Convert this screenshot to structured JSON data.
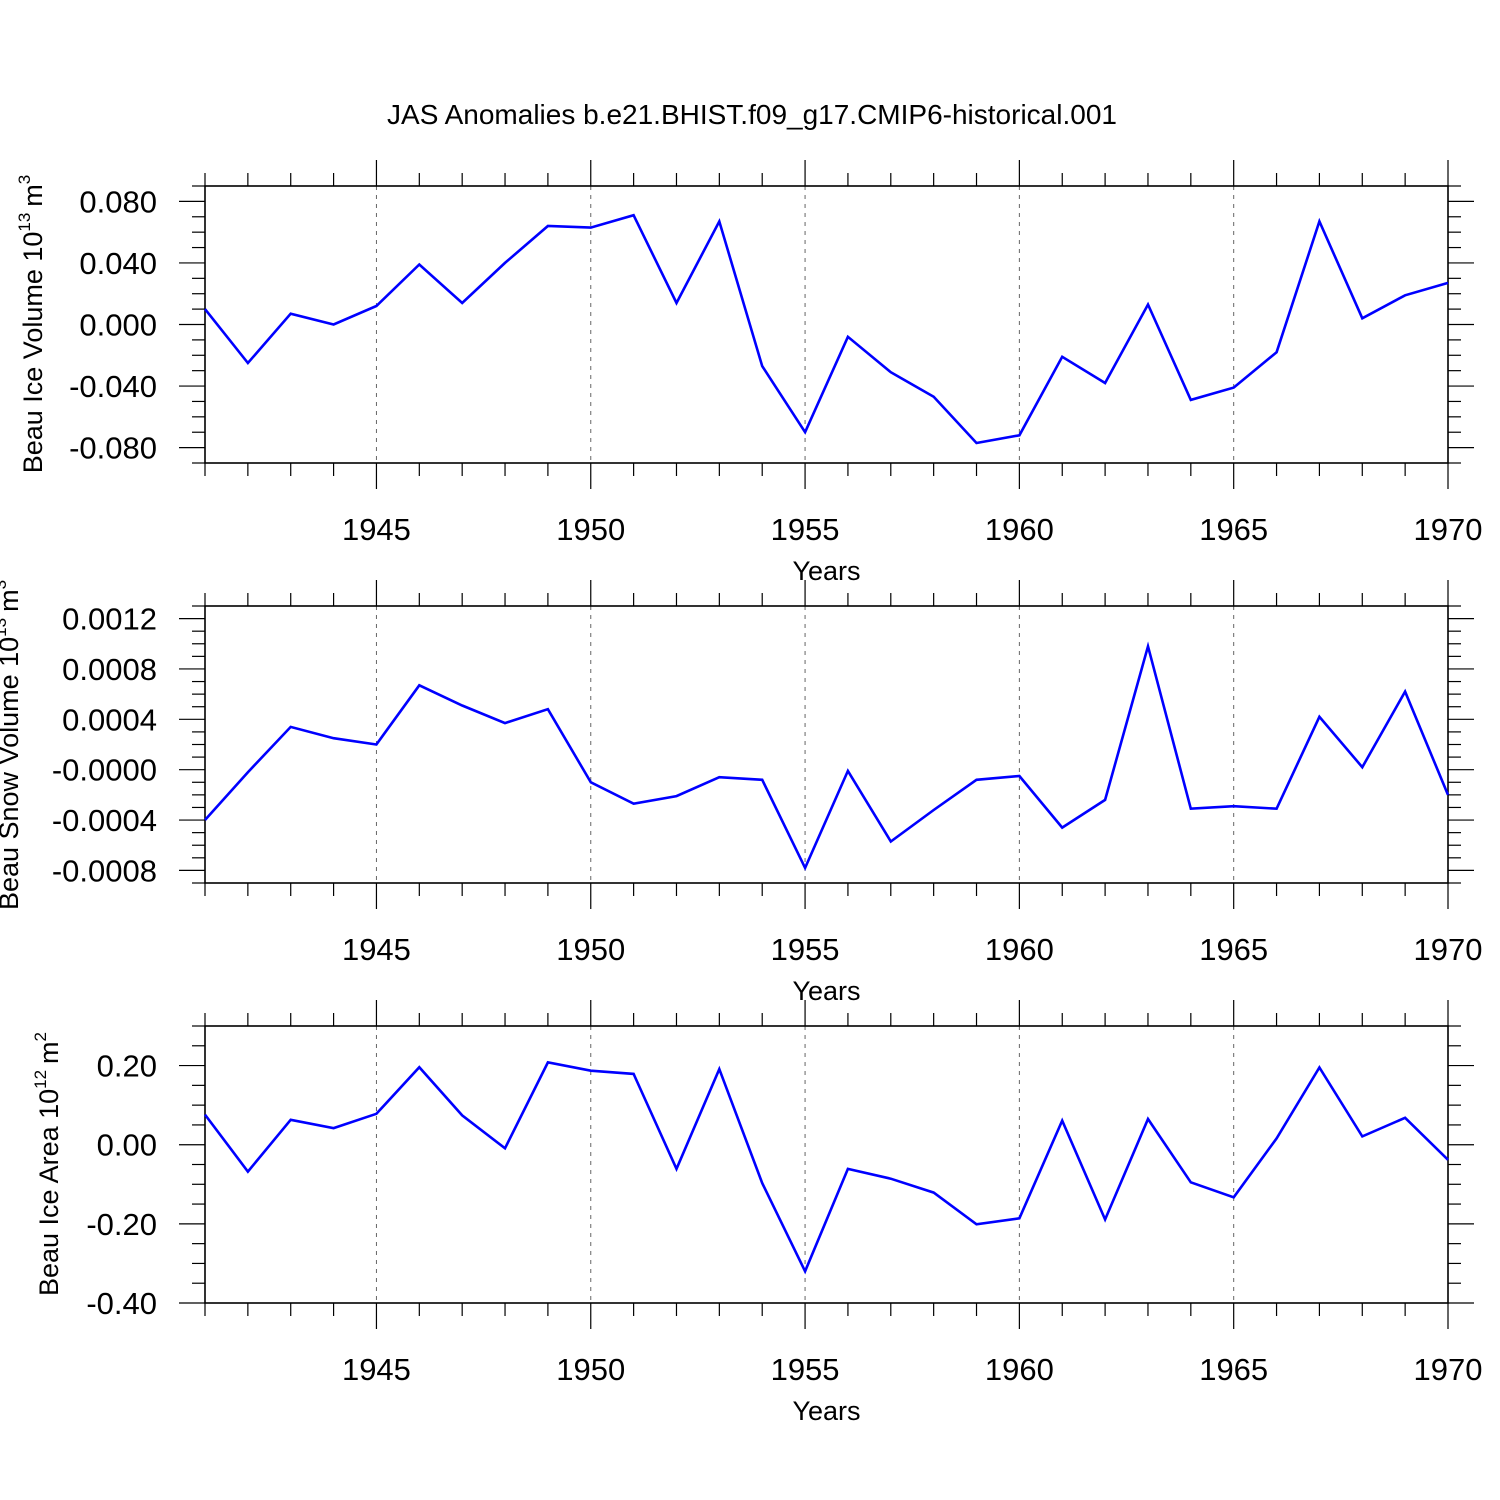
{
  "chart_data": [
    {
      "type": "line",
      "title": "JAS Anomalies b.e21.BHIST.f09_g17.CMIP6-historical.001",
      "ylabel_main": "Beau Ice Volume 10",
      "ylabel_exp": "13",
      "ylabel_unit": "m",
      "ylabel_unit_exp": "3",
      "xlabel": "Years",
      "xlim": [
        1941,
        1970
      ],
      "ylim": [
        -0.09,
        0.09
      ],
      "x_ticks": [
        1945,
        1950,
        1955,
        1960,
        1965,
        1970
      ],
      "x_tick_labels": [
        "1945",
        "1950",
        "1955",
        "1960",
        "1965",
        "1970"
      ],
      "y_ticks": [
        0.08,
        0.04,
        0.0,
        -0.04,
        -0.08
      ],
      "y_tick_labels": [
        "0.080",
        "0.040",
        "0.000",
        "-0.040",
        "-0.080"
      ],
      "y_minor_step": 0.01,
      "grid_x": [
        1945,
        1950,
        1955,
        1960,
        1965
      ],
      "color": "#0000ff",
      "x": [
        1941,
        1942,
        1943,
        1944,
        1945,
        1946,
        1947,
        1948,
        1949,
        1950,
        1951,
        1952,
        1953,
        1954,
        1955,
        1956,
        1957,
        1958,
        1959,
        1960,
        1961,
        1962,
        1963,
        1964,
        1965,
        1966,
        1967,
        1968,
        1969,
        1970
      ],
      "values": [
        0.01,
        -0.025,
        0.007,
        0.0,
        0.012,
        0.039,
        0.014,
        0.04,
        0.064,
        0.063,
        0.071,
        0.014,
        0.067,
        -0.027,
        -0.07,
        -0.008,
        -0.031,
        -0.047,
        -0.077,
        -0.072,
        -0.021,
        -0.038,
        0.013,
        -0.049,
        -0.041,
        -0.018,
        0.067,
        0.004,
        0.019,
        0.027
      ]
    },
    {
      "type": "line",
      "ylabel_main": "Beau Snow Volume 10",
      "ylabel_exp": "13",
      "ylabel_unit": "m",
      "ylabel_unit_exp": "3",
      "xlabel": "Years",
      "xlim": [
        1941,
        1970
      ],
      "ylim": [
        -0.0009,
        0.0013
      ],
      "x_ticks": [
        1945,
        1950,
        1955,
        1960,
        1965,
        1970
      ],
      "x_tick_labels": [
        "1945",
        "1950",
        "1955",
        "1960",
        "1965",
        "1970"
      ],
      "y_ticks": [
        0.0012,
        0.0008,
        0.0004,
        0.0,
        -0.0004,
        -0.0008
      ],
      "y_tick_labels": [
        "0.0012",
        "0.0008",
        "0.0004",
        "-0.0000",
        "-0.0004",
        "-0.0008"
      ],
      "y_minor_step": 0.0001,
      "grid_x": [
        1945,
        1950,
        1955,
        1960,
        1965
      ],
      "color": "#0000ff",
      "x": [
        1941,
        1942,
        1943,
        1944,
        1945,
        1946,
        1947,
        1948,
        1949,
        1950,
        1951,
        1952,
        1953,
        1954,
        1955,
        1956,
        1957,
        1958,
        1959,
        1960,
        1961,
        1962,
        1963,
        1964,
        1965,
        1966,
        1967,
        1968,
        1969,
        1970
      ],
      "values": [
        -0.0004,
        -2e-05,
        0.00034,
        0.00025,
        0.0002,
        0.00067,
        0.00051,
        0.00037,
        0.00048,
        -0.0001,
        -0.00027,
        -0.00021,
        -6e-05,
        -8e-05,
        -0.00078,
        -1e-05,
        -0.00057,
        -0.00032,
        -8e-05,
        -5e-05,
        -0.00046,
        -0.00024,
        0.00098,
        -0.00031,
        -0.00029,
        -0.00031,
        0.00042,
        2e-05,
        0.00062,
        -0.0002
      ]
    },
    {
      "type": "line",
      "ylabel_main": "Beau Ice Area 10",
      "ylabel_exp": "12",
      "ylabel_unit": "m",
      "ylabel_unit_exp": "2",
      "xlabel": "Years",
      "xlim": [
        1941,
        1970
      ],
      "ylim": [
        -0.4,
        0.3
      ],
      "x_ticks": [
        1945,
        1950,
        1955,
        1960,
        1965,
        1970
      ],
      "x_tick_labels": [
        "1945",
        "1950",
        "1955",
        "1960",
        "1965",
        "1970"
      ],
      "y_ticks": [
        0.2,
        0.0,
        -0.2,
        -0.4
      ],
      "y_tick_labels": [
        "0.20",
        "0.00",
        "-0.20",
        "-0.40"
      ],
      "y_minor_step": 0.05,
      "grid_x": [
        1945,
        1950,
        1955,
        1960,
        1965
      ],
      "color": "#0000ff",
      "x": [
        1941,
        1942,
        1943,
        1944,
        1945,
        1946,
        1947,
        1948,
        1949,
        1950,
        1951,
        1952,
        1953,
        1954,
        1955,
        1956,
        1957,
        1958,
        1959,
        1960,
        1961,
        1962,
        1963,
        1964,
        1965,
        1966,
        1967,
        1968,
        1969,
        1970
      ],
      "values": [
        0.076,
        -0.068,
        0.063,
        0.042,
        0.078,
        0.196,
        0.074,
        -0.009,
        0.208,
        0.187,
        0.179,
        -0.061,
        0.191,
        -0.097,
        -0.32,
        -0.061,
        -0.086,
        -0.121,
        -0.201,
        -0.186,
        0.061,
        -0.189,
        0.065,
        -0.095,
        -0.133,
        0.016,
        0.195,
        0.021,
        0.068,
        -0.038
      ]
    }
  ]
}
